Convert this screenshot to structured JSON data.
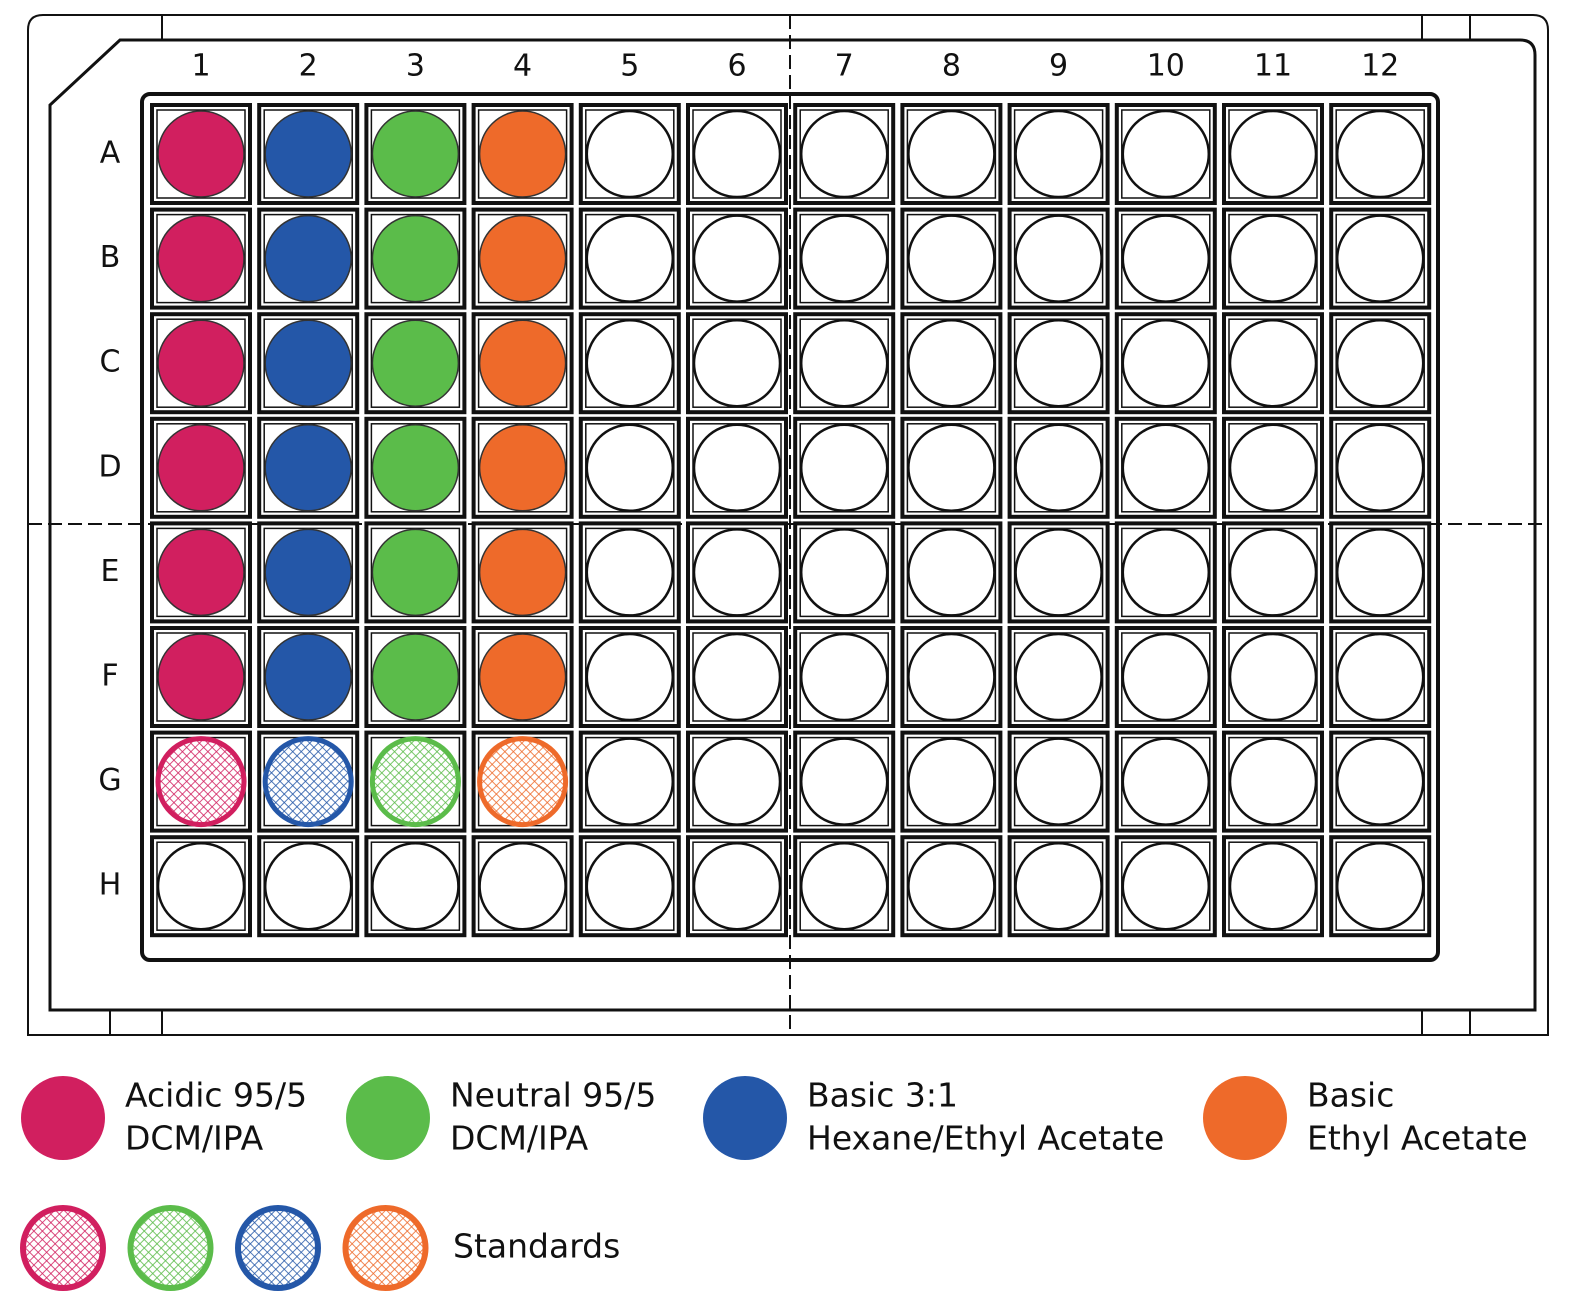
{
  "columns": [
    "1",
    "2",
    "3",
    "4",
    "5",
    "6",
    "7",
    "8",
    "9",
    "10",
    "11",
    "12"
  ],
  "rows": [
    "A",
    "B",
    "C",
    "D",
    "E",
    "F",
    "G",
    "H"
  ],
  "legend": [
    {
      "lines": [
        "Acidic 95/5",
        "DCM/IPA"
      ],
      "color": "#d11f5f"
    },
    {
      "lines": [
        "Neutral 95/5",
        "DCM/IPA"
      ],
      "color": "#5bbc4a"
    },
    {
      "lines": [
        "Basic 3:1",
        "Hexane/Ethyl Acetate"
      ],
      "color": "#2457a8"
    },
    {
      "lines": [
        "Basic",
        "Ethyl Acetate"
      ],
      "color": "#ee6a2a"
    }
  ],
  "standards": "Standards"
}
